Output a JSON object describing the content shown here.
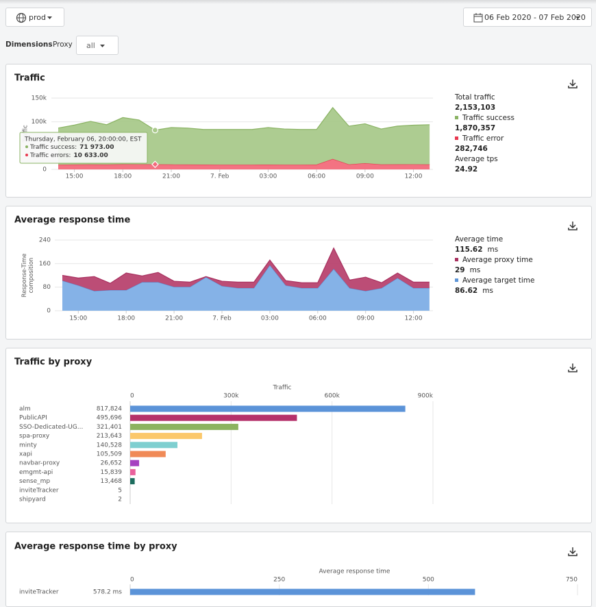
{
  "header": {
    "environment": "prod",
    "date_range": "06 Feb 2020 - 07 Feb 2020"
  },
  "filters": {
    "label": "Dimensions",
    "dimension": "Proxy",
    "value": "all"
  },
  "chart_data": [
    {
      "type": "area",
      "stacked": true,
      "title": "Traffic",
      "ylabel": "Traffic",
      "categories": [
        null,
        "15:00",
        null,
        null,
        "18:00",
        null,
        null,
        "21:00",
        null,
        null,
        "7. Feb",
        null,
        null,
        "03:00",
        null,
        null,
        "06:00",
        null,
        null,
        "09:00",
        null,
        null,
        "12:00",
        null
      ],
      "series": [
        {
          "name": "Traffic success",
          "color": "#a9c98b",
          "line_color": "#8ab363",
          "total": "1,870,357",
          "values": [
            77000,
            83000,
            90500,
            83700,
            98200,
            93300,
            71973,
            77600,
            76800,
            73900,
            74000,
            74000,
            74000,
            77900,
            75000,
            74000,
            73900,
            108000,
            80500,
            83000,
            74500,
            80400,
            82300,
            83500
          ]
        },
        {
          "name": "Traffic error",
          "color": "#f26b7b",
          "line_color": "#e8384f",
          "total": "282,746",
          "values": [
            10000,
            10200,
            10500,
            10300,
            10800,
            10700,
            10633,
            10400,
            10200,
            10100,
            10000,
            10000,
            10000,
            10100,
            10000,
            10000,
            10100,
            22000,
            10500,
            13000,
            10500,
            10600,
            10700,
            10500
          ]
        }
      ],
      "summary": [
        {
          "label": "Total traffic",
          "value": "2,153,103"
        },
        {
          "label": "Average tps",
          "value": "24.92"
        }
      ],
      "tooltip": {
        "title": "Thursday, February 06, 20:00:00, EST",
        "rows": [
          {
            "label": "Traffic success:",
            "value": "71 973.00"
          },
          {
            "label": "Traffic errors:",
            "value": "10 633.00"
          }
        ]
      },
      "ylim": [
        0,
        150000
      ],
      "yticks": [
        0,
        {
          "value": 100000,
          "label": "100k"
        },
        {
          "value": 150000,
          "label": "150k"
        }
      ],
      "grid": true
    },
    {
      "type": "area",
      "stacked": true,
      "title": "Average response time",
      "ylabel": "Response-Time composition",
      "categories": [
        null,
        "15:00",
        null,
        null,
        "18:00",
        null,
        null,
        "21:00",
        null,
        null,
        "7. Feb",
        null,
        null,
        "03:00",
        null,
        null,
        "06:00",
        null,
        null,
        "09:00",
        null,
        null,
        "12:00",
        null
      ],
      "series": [
        {
          "name": "Average proxy time",
          "color": "#b8436f",
          "line_color": "#a8305f",
          "total": "29",
          "unit": "ms",
          "values": [
            18,
            25,
            49,
            23,
            58,
            21,
            33,
            19,
            16,
            2,
            16,
            20,
            20,
            17,
            16,
            18,
            18,
            71,
            27,
            47,
            18,
            17,
            20,
            20
          ]
        },
        {
          "name": "Average target time",
          "color": "#7eaee6",
          "line_color": "#5d95d8",
          "total": "86.62",
          "unit": "ms",
          "values": [
            102,
            86,
            67,
            70,
            70,
            97,
            97,
            81,
            81,
            114,
            84,
            77,
            77,
            155,
            86,
            77,
            77,
            142,
            77,
            67,
            77,
            111,
            77,
            77
          ]
        }
      ],
      "summary": [
        {
          "label": "Average time",
          "value": "115.62",
          "unit": "ms"
        }
      ],
      "ylim": [
        0,
        240
      ],
      "yticks": [
        0,
        80,
        160,
        240
      ],
      "grid": true
    },
    {
      "type": "bar",
      "orientation": "horizontal",
      "title": "Traffic by proxy",
      "xlabel": "Traffic",
      "categories": [
        "alm",
        "PublicAPI",
        "SSO-Dedicated-UG...",
        "spa-proxy",
        "minty",
        "xapi",
        "navbar-proxy",
        "emgmt-api",
        "sense_mp",
        "inviteTracker",
        "shipyard"
      ],
      "values": [
        817824,
        495696,
        321401,
        213643,
        140528,
        105509,
        26652,
        15839,
        13468,
        5,
        2
      ],
      "value_labels": [
        "817,824",
        "495,696",
        "321,401",
        "213,643",
        "140,528",
        "105,509",
        "26,652",
        "15,839",
        "13,468",
        "5",
        "2"
      ],
      "colors": [
        "#5b93d8",
        "#b5306a",
        "#8cb35f",
        "#fbc86b",
        "#7ecfd0",
        "#f08a57",
        "#a640c0",
        "#e9619c",
        "#1d6d5e",
        "#5b93d8",
        "#b5306a"
      ],
      "xlim": [
        0,
        900000
      ],
      "xticks": [
        0,
        {
          "value": 300000,
          "label": "300k"
        },
        {
          "value": 600000,
          "label": "600k"
        },
        {
          "value": 900000,
          "label": "900k"
        }
      ],
      "grid": true
    },
    {
      "type": "bar",
      "orientation": "horizontal",
      "title": "Average response time by proxy",
      "xlabel": "Average response time",
      "categories": [
        "inviteTracker"
      ],
      "values": [
        578.2
      ],
      "value_labels": [
        "578.2 ms"
      ],
      "colors": [
        "#5b93d8"
      ],
      "xlim": [
        0,
        750
      ],
      "xticks": [
        0,
        250,
        500,
        750
      ],
      "grid": true
    }
  ]
}
